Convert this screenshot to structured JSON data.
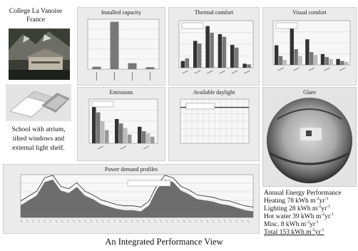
{
  "school": {
    "name": "College La Vanoise",
    "location": "France"
  },
  "caption": [
    "School with atrium,",
    "tilted windows and",
    "external light shelf."
  ],
  "panels": {
    "installed_capacity": "Installed capacity",
    "thermal_comfort": "Thermal comfort",
    "visual_comfort": "Visual comfort",
    "emissions": "Emissions",
    "available_daylight": "Available daylight",
    "glare": "Glare",
    "power_demand": "Power demand profiles"
  },
  "energy": {
    "title": "Annual Energy Performance",
    "unit": "kWh m",
    "unit_exp1": "-2",
    "unit_mid": "yr",
    "unit_exp2": "-1",
    "rows": [
      {
        "label": "Heating",
        "value": "78"
      },
      {
        "label": "Lighting",
        "value": "28"
      },
      {
        "label": "Hot water",
        "value": "39"
      },
      {
        "label": "Misc.",
        "value": "8"
      },
      {
        "label": "Total",
        "value": "153"
      }
    ]
  },
  "footer": "An Integrated Performance View",
  "colors": {
    "panel": "#ebebeb",
    "bar_dark": "#333333",
    "bar_mid": "#777777",
    "bar_light": "#bbbbbb",
    "area": "#555555"
  },
  "chart_data": [
    {
      "type": "bar",
      "categories": [
        "",
        "",
        "",
        ""
      ],
      "values": [
        5,
        95,
        12,
        4
      ]
    },
    {
      "type": "bar",
      "series": [
        {
          "values": [
            10,
            40,
            62,
            50,
            34,
            6
          ]
        },
        {
          "values": [
            14,
            36,
            52,
            46,
            30,
            5
          ]
        }
      ]
    },
    {
      "type": "bar",
      "series": [
        {
          "values": [
            40,
            78,
            52,
            22,
            12
          ]
        },
        {
          "values": [
            18,
            32,
            26,
            16,
            8
          ]
        },
        {
          "values": [
            10,
            18,
            20,
            12,
            6
          ]
        }
      ]
    },
    {
      "type": "bar",
      "series": [
        {
          "values": [
            70,
            44,
            30
          ]
        },
        {
          "values": [
            56,
            36,
            22
          ]
        },
        {
          "values": [
            40,
            28,
            18
          ]
        },
        {
          "values": [
            24,
            16,
            12
          ]
        }
      ]
    },
    {
      "type": "line",
      "series": [
        {
          "values": [
            100,
            100,
            100,
            100,
            100,
            100,
            100,
            100,
            100,
            100,
            100,
            100
          ]
        }
      ]
    },
    {
      "type": "area",
      "series": [
        {
          "values": [
            20,
            28,
            36,
            58,
            62,
            44,
            40,
            50,
            36,
            30,
            22,
            18,
            14,
            12,
            12,
            10,
            20,
            46,
            62,
            58,
            44,
            38,
            30,
            28,
            26,
            22,
            20,
            16,
            12,
            10
          ]
        }
      ]
    }
  ]
}
